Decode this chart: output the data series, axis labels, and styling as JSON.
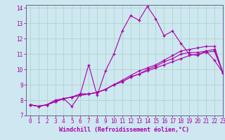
{
  "xlabel": "Windchill (Refroidissement éolien,°C)",
  "background_color": "#cde8f0",
  "grid_color": "#b0d4c8",
  "line_color": "#aa00aa",
  "spine_color": "#666688",
  "xlim": [
    -0.5,
    23
  ],
  "ylim": [
    7,
    14.2
  ],
  "xticks": [
    0,
    1,
    2,
    3,
    4,
    5,
    6,
    7,
    8,
    9,
    10,
    11,
    12,
    13,
    14,
    15,
    16,
    17,
    18,
    19,
    20,
    21,
    22,
    23
  ],
  "yticks": [
    7,
    8,
    9,
    10,
    11,
    12,
    13,
    14
  ],
  "series": [
    [
      7.7,
      7.6,
      7.7,
      8.0,
      8.1,
      7.6,
      8.4,
      10.3,
      8.3,
      9.9,
      11.0,
      12.5,
      13.5,
      13.2,
      14.1,
      13.3,
      12.2,
      12.5,
      11.7,
      11.0,
      10.9,
      11.2,
      10.6,
      9.8
    ],
    [
      7.7,
      7.6,
      7.7,
      7.9,
      8.1,
      8.2,
      8.3,
      8.4,
      8.5,
      8.7,
      9.0,
      9.2,
      9.5,
      9.7,
      9.9,
      10.1,
      10.3,
      10.5,
      10.7,
      10.9,
      11.0,
      11.1,
      11.2,
      9.8
    ],
    [
      7.7,
      7.6,
      7.7,
      7.9,
      8.1,
      8.2,
      8.4,
      8.4,
      8.5,
      8.7,
      9.0,
      9.2,
      9.5,
      9.7,
      10.0,
      10.2,
      10.5,
      10.7,
      11.0,
      11.1,
      11.1,
      11.2,
      11.3,
      9.8
    ],
    [
      7.7,
      7.6,
      7.7,
      7.9,
      8.1,
      8.2,
      8.4,
      8.4,
      8.5,
      8.7,
      9.0,
      9.3,
      9.6,
      9.9,
      10.1,
      10.3,
      10.6,
      10.9,
      11.2,
      11.3,
      11.4,
      11.5,
      11.5,
      9.8
    ]
  ],
  "tick_fontsize": 5.5,
  "xlabel_fontsize": 6.0
}
